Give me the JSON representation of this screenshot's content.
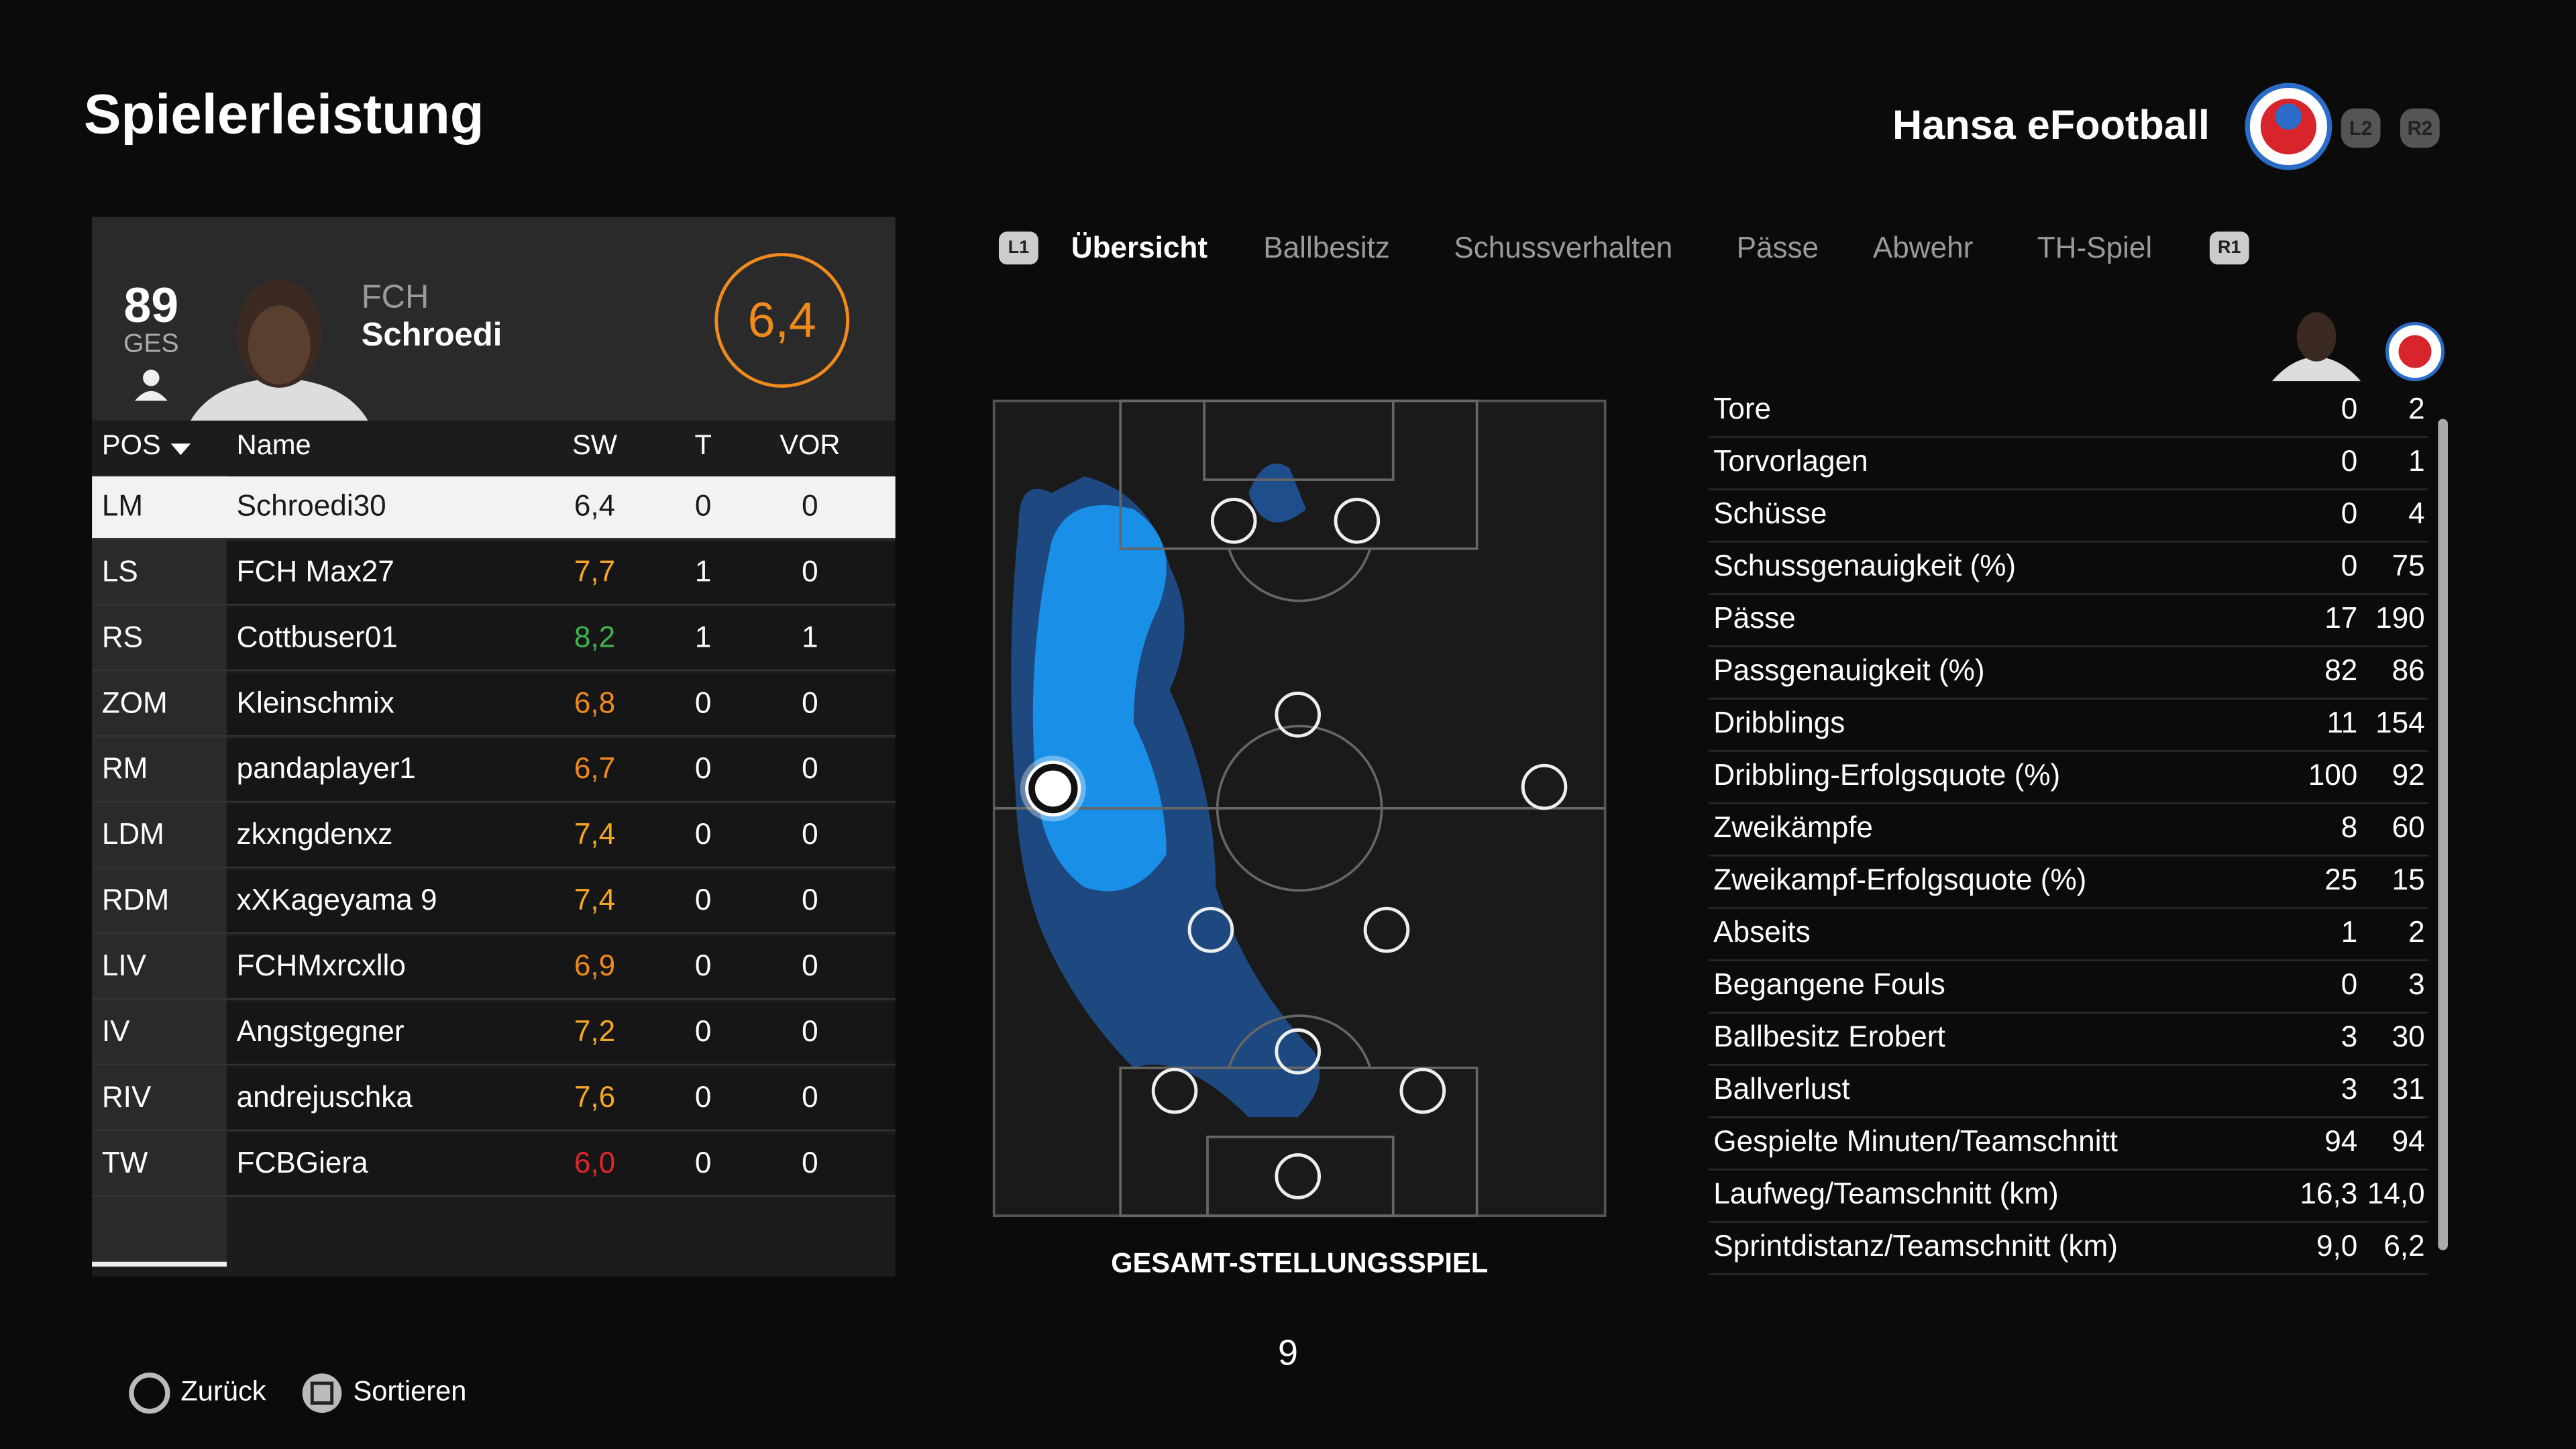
{
  "header": {
    "title": "Spielerleistung",
    "team": "Hansa eFootball",
    "buttons": [
      "L2",
      "R2"
    ]
  },
  "player_card": {
    "rating": 89,
    "rating_label": "GES",
    "club": "FCH",
    "name": "Schroedi",
    "score": "6,4"
  },
  "table": {
    "columns": [
      "POS",
      "Name",
      "SW",
      "T",
      "VOR"
    ],
    "rows": [
      {
        "cells": [
          "LM",
          "Schroedi30",
          "6,4",
          0,
          0
        ],
        "color": "#1a1a1a"
      },
      {
        "cells": [
          "LS",
          "FCH Max27",
          "7,7",
          1,
          0
        ],
        "color": "#f5a623"
      },
      {
        "cells": [
          "RS",
          "Cottbuser01",
          "8,2",
          1,
          1
        ],
        "color": "#3cb44b"
      },
      {
        "cells": [
          "ZOM",
          "Kleinschmix",
          "6,8",
          0,
          0
        ],
        "color": "#f08a1c"
      },
      {
        "cells": [
          "RM",
          "pandaplayer1",
          "6,7",
          0,
          0
        ],
        "color": "#f08a1c"
      },
      {
        "cells": [
          "LDM",
          "zkxngdenxz",
          "7,4",
          0,
          0
        ],
        "color": "#f5a623"
      },
      {
        "cells": [
          "RDM",
          "xXKageyama 9",
          "7,4",
          0,
          0
        ],
        "color": "#f5a623"
      },
      {
        "cells": [
          "LIV",
          "FCHMxrcxllo",
          "6,9",
          0,
          0
        ],
        "color": "#f08a1c"
      },
      {
        "cells": [
          "IV",
          "Angstgegner",
          "7,2",
          0,
          0
        ],
        "color": "#f5a623"
      },
      {
        "cells": [
          "RIV",
          "andrejuschka",
          "7,6",
          0,
          0
        ],
        "color": "#f5a623"
      },
      {
        "cells": [
          "TW",
          "FCBGiera",
          "6,0",
          0,
          0
        ],
        "color": "#e0262b"
      }
    ]
  },
  "tabs": [
    "L1",
    "Übersicht",
    "Ballbesitz",
    "Schussverhalten",
    "Pässe",
    "Abwehr",
    "TH-Spiel",
    "R1"
  ],
  "pitch": {
    "label": "GESAMT-STELLUNGSSPIEL",
    "page": 9
  },
  "stats": [
    [
      "Tore",
      0,
      2
    ],
    [
      "Torvorlagen",
      0,
      1
    ],
    [
      "Schüsse",
      0,
      4
    ],
    [
      "Schussgenauigkeit (%)",
      0,
      75
    ],
    [
      "Pässe",
      17,
      190
    ],
    [
      "Passgenauigkeit (%)",
      82,
      86
    ],
    [
      "Dribblings",
      11,
      154
    ],
    [
      "Dribbling-Erfolgsquote (%)",
      100,
      92
    ],
    [
      "Zweikämpfe",
      8,
      60
    ],
    [
      "Zweikampf-Erfolgsquote (%)",
      25,
      15
    ],
    [
      "Abseits",
      1,
      2
    ],
    [
      "Begangene Fouls",
      0,
      3
    ],
    [
      "Ballbesitz Erobert",
      3,
      30
    ],
    [
      "Ballverlust",
      3,
      31
    ],
    [
      "Gespielte Minuten/Teamschnitt",
      94,
      94
    ],
    [
      "Laufweg/Teamschnitt (km)",
      "16,3",
      "14,0"
    ],
    [
      "Sprintdistanz/Teamschnitt (km)",
      "9,0",
      "6,2"
    ]
  ],
  "footer": [
    "Zurück",
    "Sortieren"
  ]
}
